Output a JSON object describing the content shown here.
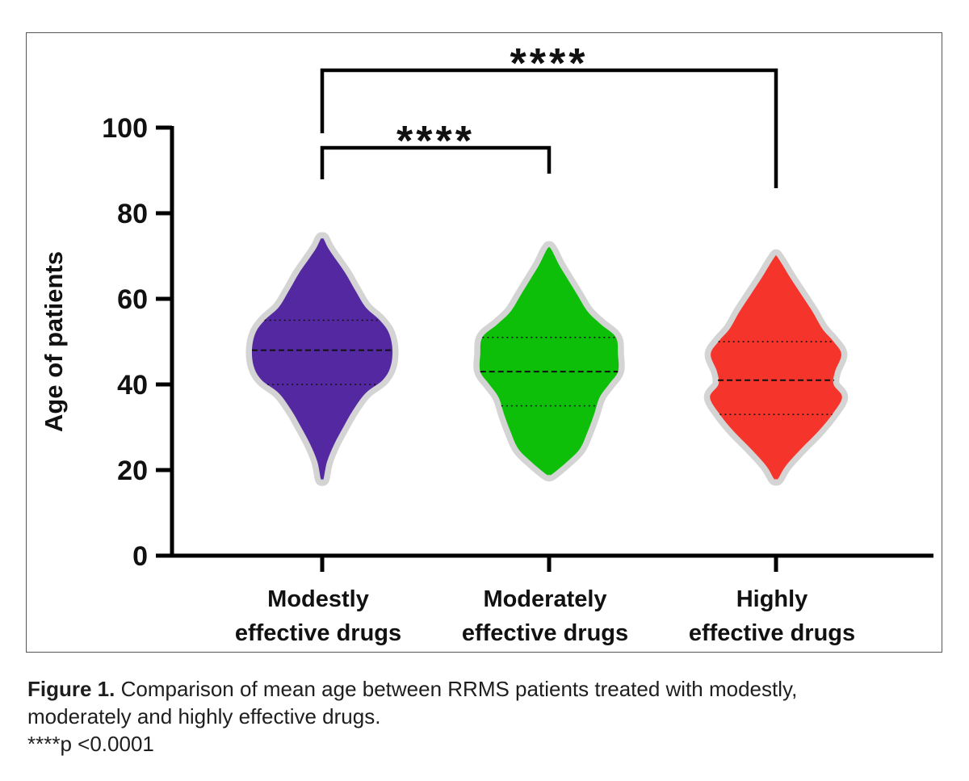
{
  "chart_data": {
    "type": "violin",
    "ylabel": "Age of patients",
    "ylim": [
      0,
      100
    ],
    "yticks": [
      0,
      20,
      40,
      60,
      80,
      100
    ],
    "categories": [
      {
        "line1": "Modestly",
        "line2": "effective drugs"
      },
      {
        "line1": "Moderately",
        "line2": "effective drugs"
      },
      {
        "line1": "Highly",
        "line2": "effective drugs"
      }
    ],
    "series": [
      {
        "color": "#5428a0",
        "min": 18,
        "max": 74,
        "q1": 40,
        "median": 48,
        "q3": 55,
        "profile": [
          [
            18,
            0.02
          ],
          [
            22,
            0.07
          ],
          [
            26,
            0.17
          ],
          [
            30,
            0.3
          ],
          [
            34,
            0.44
          ],
          [
            38,
            0.62
          ],
          [
            41,
            0.86
          ],
          [
            44,
            0.97
          ],
          [
            48,
            1.0
          ],
          [
            52,
            0.95
          ],
          [
            55,
            0.82
          ],
          [
            58,
            0.62
          ],
          [
            62,
            0.47
          ],
          [
            66,
            0.33
          ],
          [
            70,
            0.16
          ],
          [
            72,
            0.08
          ],
          [
            74,
            0.02
          ]
        ]
      },
      {
        "color": "#0ebf0a",
        "min": 19,
        "max": 72,
        "q1": 35,
        "median": 43,
        "q3": 51,
        "profile": [
          [
            19,
            0.04
          ],
          [
            22,
            0.26
          ],
          [
            25,
            0.44
          ],
          [
            29,
            0.55
          ],
          [
            33,
            0.64
          ],
          [
            37,
            0.72
          ],
          [
            40,
            0.85
          ],
          [
            43,
            0.98
          ],
          [
            47,
            0.98
          ],
          [
            51,
            0.95
          ],
          [
            54,
            0.74
          ],
          [
            57,
            0.55
          ],
          [
            61,
            0.4
          ],
          [
            65,
            0.25
          ],
          [
            68,
            0.14
          ],
          [
            71,
            0.05
          ],
          [
            72,
            0.01
          ]
        ]
      },
      {
        "color": "#f5352b",
        "min": 18,
        "max": 70,
        "q1": 33,
        "median": 41,
        "q3": 50,
        "profile": [
          [
            18,
            0.03
          ],
          [
            21,
            0.14
          ],
          [
            25,
            0.36
          ],
          [
            29,
            0.6
          ],
          [
            33,
            0.8
          ],
          [
            37,
            0.94
          ],
          [
            40,
            0.82
          ],
          [
            43,
            0.84
          ],
          [
            47,
            0.93
          ],
          [
            50,
            0.82
          ],
          [
            53,
            0.66
          ],
          [
            57,
            0.52
          ],
          [
            61,
            0.36
          ],
          [
            65,
            0.2
          ],
          [
            68,
            0.09
          ],
          [
            70,
            0.01
          ]
        ]
      }
    ],
    "comparisons": [
      {
        "from": 0,
        "to": 1,
        "label": "****"
      },
      {
        "from": 0,
        "to": 2,
        "label": "****"
      }
    ]
  },
  "caption": {
    "figure_label": "Figure 1.",
    "text_line1": "Comparison of mean age between RRMS patients treated with modestly,",
    "text_line2": "moderately and highly effective drugs.",
    "text_line3": "****p <0.0001"
  }
}
